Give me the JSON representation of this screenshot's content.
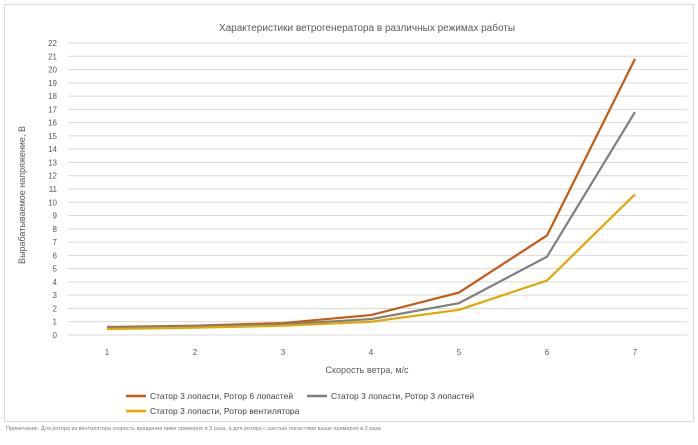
{
  "chart_data": {
    "type": "line",
    "title": "Характеристики ветрогенератора в различных режимах работы",
    "xlabel": "Скорость ветра, м/с",
    "ylabel": "Вырабатываемое напряжение, В",
    "x": [
      1,
      2,
      3,
      4,
      5,
      6,
      7
    ],
    "ylim": [
      0,
      22
    ],
    "yticks": [
      0,
      1,
      2,
      3,
      4,
      5,
      6,
      7,
      8,
      9,
      10,
      11,
      12,
      13,
      14,
      15,
      16,
      17,
      18,
      19,
      20,
      21,
      22
    ],
    "grid": true,
    "legend_position": "bottom",
    "series": [
      {
        "name": "Статор 3 лопасти, Ротор 6 лопастей",
        "color": "#c55a11",
        "values": [
          0.6,
          0.7,
          0.9,
          1.5,
          3.2,
          7.5,
          20.8
        ]
      },
      {
        "name": "Статор 3 лопасти, Ротор 3 лопастей",
        "color": "#7f7f7f",
        "values": [
          0.55,
          0.65,
          0.8,
          1.2,
          2.4,
          5.9,
          16.8
        ]
      },
      {
        "name": "Статор 3 лопасти, Ротор вентилятора",
        "color": "#e0a800",
        "values": [
          0.45,
          0.55,
          0.7,
          1.0,
          1.9,
          4.1,
          10.6
        ]
      }
    ]
  },
  "footnote": "Примечание. Для ротора из вентилятора скорость вращения ниже примерно в 3 раза, а для ротора с шестью лопастями выше примерно в 2 раза"
}
